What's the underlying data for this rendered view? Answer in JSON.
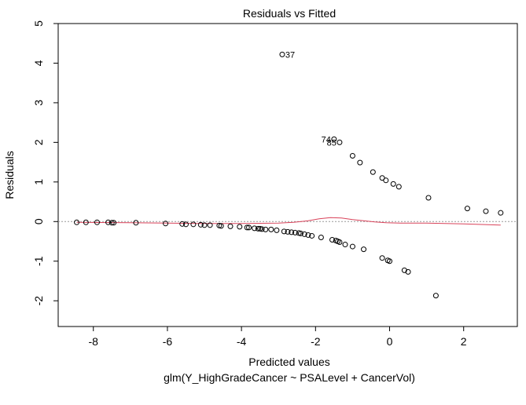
{
  "chart_data": {
    "type": "scatter",
    "title": "Residuals vs Fitted",
    "xlabel": "Predicted values",
    "subtitle": "glm(Y_HighGradeCancer ~ PSALevel + CancerVol)",
    "ylabel": "Residuals",
    "xlim": [
      -8.95,
      3.45
    ],
    "ylim": [
      -2.65,
      5.0
    ],
    "xticks": [
      -8,
      -6,
      -4,
      -2,
      0,
      2
    ],
    "xtick_labels": [
      "-8",
      "-6",
      "-4",
      "-2",
      "0",
      "2"
    ],
    "yticks": [
      -2,
      -1,
      0,
      1,
      2,
      3,
      4,
      5
    ],
    "ytick_labels": [
      "-2",
      "-1",
      "0",
      "1",
      "2",
      "3",
      "4",
      "5"
    ],
    "grid": false,
    "reference_line_y": 0,
    "points": [
      [
        -8.45,
        -0.02
      ],
      [
        -8.2,
        -0.02
      ],
      [
        -7.9,
        -0.02
      ],
      [
        -7.6,
        -0.02
      ],
      [
        -7.5,
        -0.03
      ],
      [
        -7.45,
        -0.03
      ],
      [
        -6.85,
        -0.03
      ],
      [
        -6.05,
        -0.05
      ],
      [
        -5.6,
        -0.06
      ],
      [
        -5.5,
        -0.07
      ],
      [
        -5.3,
        -0.07
      ],
      [
        -5.1,
        -0.08
      ],
      [
        -5.0,
        -0.09
      ],
      [
        -4.85,
        -0.09
      ],
      [
        -4.6,
        -0.1
      ],
      [
        -4.55,
        -0.11
      ],
      [
        -4.3,
        -0.12
      ],
      [
        -4.05,
        -0.13
      ],
      [
        -3.85,
        -0.15
      ],
      [
        -3.8,
        -0.15
      ],
      [
        -3.65,
        -0.17
      ],
      [
        -3.55,
        -0.18
      ],
      [
        -3.5,
        -0.18
      ],
      [
        -3.45,
        -0.19
      ],
      [
        -3.35,
        -0.2
      ],
      [
        -3.2,
        -0.2
      ],
      [
        -3.05,
        -0.22
      ],
      [
        -2.85,
        -0.25
      ],
      [
        -2.75,
        -0.26
      ],
      [
        -2.65,
        -0.27
      ],
      [
        -2.55,
        -0.28
      ],
      [
        -2.45,
        -0.29
      ],
      [
        -2.4,
        -0.3
      ],
      [
        -2.3,
        -0.32
      ],
      [
        -2.2,
        -0.34
      ],
      [
        -2.1,
        -0.36
      ],
      [
        -1.85,
        -0.4
      ],
      [
        -1.55,
        -0.46
      ],
      [
        -1.45,
        -0.48
      ],
      [
        -1.4,
        -0.5
      ],
      [
        -1.35,
        -0.52
      ],
      [
        -1.2,
        -0.58
      ],
      [
        -1.0,
        -0.63
      ],
      [
        -0.7,
        -0.7
      ],
      [
        -0.2,
        -0.92
      ],
      [
        -0.05,
        -0.98
      ],
      [
        0.0,
        -1.0
      ],
      [
        0.4,
        -1.23
      ],
      [
        0.5,
        -1.27
      ],
      [
        1.25,
        -1.87
      ],
      [
        -1.0,
        1.66
      ],
      [
        -0.8,
        1.49
      ],
      [
        -0.45,
        1.25
      ],
      [
        -0.2,
        1.1
      ],
      [
        -0.1,
        1.04
      ],
      [
        0.1,
        0.95
      ],
      [
        0.25,
        0.88
      ],
      [
        1.05,
        0.6
      ],
      [
        2.1,
        0.33
      ],
      [
        2.6,
        0.26
      ],
      [
        3.0,
        0.22
      ]
    ],
    "labeled_points": [
      {
        "label": "37",
        "x": -2.9,
        "y": 4.22
      },
      {
        "label": "74",
        "x": -1.5,
        "y": 2.08
      },
      {
        "label": "85",
        "x": -1.35,
        "y": 2.0
      }
    ],
    "smooth_line": {
      "color": "#d9435a",
      "x": [
        -8.45,
        -7.0,
        -6.0,
        -5.0,
        -4.0,
        -3.0,
        -2.6,
        -2.2,
        -1.9,
        -1.6,
        -1.3,
        -1.0,
        -0.7,
        -0.4,
        -0.1,
        0.3,
        1.0,
        2.0,
        3.0
      ],
      "y": [
        -0.02,
        -0.03,
        -0.04,
        -0.05,
        -0.05,
        -0.04,
        -0.02,
        0.02,
        0.07,
        0.1,
        0.09,
        0.05,
        0.02,
        -0.01,
        -0.03,
        -0.04,
        -0.04,
        -0.06,
        -0.09
      ]
    }
  }
}
